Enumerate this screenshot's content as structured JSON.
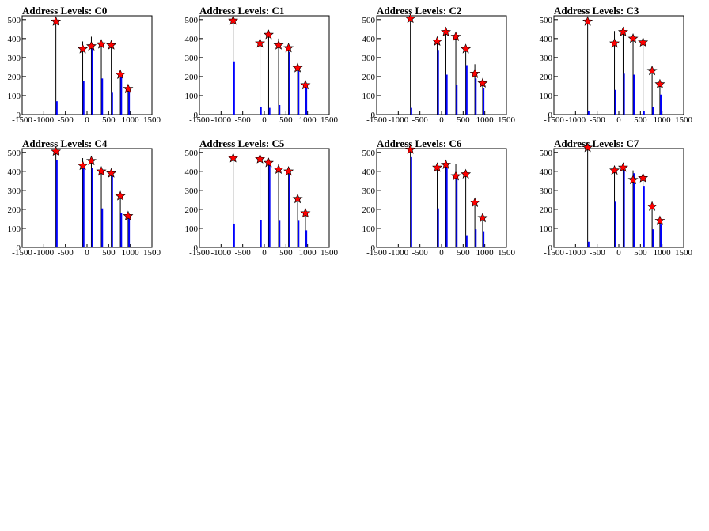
{
  "chart_data": [
    {
      "type": "bar",
      "title": "Address Levels: C0",
      "xlim": [
        -1500,
        1500
      ],
      "ylim": [
        0,
        520
      ],
      "xticks": [
        -1500,
        -1000,
        -500,
        0,
        500,
        1000,
        1500
      ],
      "yticks": [
        0,
        100,
        200,
        300,
        400,
        500
      ],
      "series": [
        {
          "color": "#000000",
          "x": [
            -720,
            -100,
            100,
            330,
            560,
            770,
            950
          ],
          "values": [
            490,
            385,
            410,
            375,
            370,
            215,
            140
          ]
        },
        {
          "color": "#0000ff",
          "x": [
            -720,
            -100,
            100,
            330,
            560,
            770,
            950
          ],
          "values": [
            70,
            175,
            350,
            190,
            115,
            200,
            120
          ]
        }
      ],
      "peaks": {
        "color": "#ff0000",
        "x": [
          -720,
          -100,
          100,
          330,
          560,
          770,
          950
        ],
        "values": [
          490,
          345,
          360,
          370,
          365,
          210,
          135
        ]
      }
    },
    {
      "type": "bar",
      "title": "Address Levels: C1",
      "xlim": [
        -1500,
        1500
      ],
      "ylim": [
        0,
        520
      ],
      "xticks": [
        -1500,
        -1000,
        -500,
        0,
        500,
        1000,
        1500
      ],
      "yticks": [
        0,
        100,
        200,
        300,
        400,
        500
      ],
      "series": [
        {
          "color": "#000000",
          "x": [
            -720,
            -100,
            100,
            330,
            560,
            770,
            950
          ],
          "values": [
            500,
            430,
            425,
            400,
            365,
            255,
            165
          ]
        },
        {
          "color": "#0000ff",
          "x": [
            -720,
            -100,
            100,
            330,
            560,
            770,
            950
          ],
          "values": [
            280,
            40,
            35,
            50,
            330,
            230,
            140
          ]
        }
      ],
      "peaks": {
        "color": "#ff0000",
        "x": [
          -720,
          -100,
          100,
          330,
          560,
          770,
          950
        ],
        "values": [
          495,
          375,
          420,
          365,
          350,
          245,
          155
        ]
      }
    },
    {
      "type": "bar",
      "title": "Address Levels: C2",
      "xlim": [
        -1500,
        1500
      ],
      "ylim": [
        0,
        520
      ],
      "xticks": [
        -1500,
        -1000,
        -500,
        0,
        500,
        1000,
        1500
      ],
      "yticks": [
        0,
        100,
        200,
        300,
        400,
        500
      ],
      "series": [
        {
          "color": "#000000",
          "x": [
            -720,
            -100,
            100,
            330,
            560,
            770,
            950
          ],
          "values": [
            505,
            400,
            445,
            420,
            365,
            265,
            175
          ]
        },
        {
          "color": "#0000ff",
          "x": [
            -720,
            -100,
            100,
            330,
            560,
            770,
            950
          ],
          "values": [
            35,
            340,
            210,
            155,
            260,
            190,
            140
          ]
        }
      ],
      "peaks": {
        "color": "#ff0000",
        "x": [
          -720,
          -100,
          100,
          330,
          560,
          770,
          950
        ],
        "values": [
          505,
          385,
          435,
          410,
          345,
          215,
          165
        ]
      }
    },
    {
      "type": "bar",
      "title": "Address Levels: C3",
      "xlim": [
        -1500,
        1500
      ],
      "ylim": [
        0,
        520
      ],
      "xticks": [
        -1500,
        -1000,
        -500,
        0,
        500,
        1000,
        1500
      ],
      "yticks": [
        0,
        100,
        200,
        300,
        400,
        500
      ],
      "series": [
        {
          "color": "#000000",
          "x": [
            -720,
            -100,
            100,
            330,
            560,
            770,
            950
          ],
          "values": [
            490,
            440,
            445,
            420,
            375,
            250,
            175
          ]
        },
        {
          "color": "#0000ff",
          "x": [
            -720,
            -100,
            100,
            330,
            560,
            770,
            950
          ],
          "values": [
            20,
            130,
            215,
            210,
            20,
            40,
            105
          ]
        }
      ],
      "peaks": {
        "color": "#ff0000",
        "x": [
          -720,
          -100,
          100,
          330,
          560,
          770,
          950
        ],
        "values": [
          490,
          375,
          435,
          400,
          380,
          230,
          160
        ]
      }
    },
    {
      "type": "bar",
      "title": "Address Levels: C4",
      "xlim": [
        -1500,
        1500
      ],
      "ylim": [
        0,
        520
      ],
      "xticks": [
        -1500,
        -1000,
        -500,
        0,
        500,
        1000,
        1500
      ],
      "yticks": [
        0,
        100,
        200,
        300,
        400,
        500
      ],
      "series": [
        {
          "color": "#000000",
          "x": [
            -720,
            -100,
            100,
            330,
            560,
            770,
            950
          ],
          "values": [
            505,
            470,
            470,
            415,
            395,
            280,
            170
          ]
        },
        {
          "color": "#0000ff",
          "x": [
            -720,
            -100,
            100,
            330,
            560,
            770,
            950
          ],
          "values": [
            460,
            430,
            420,
            205,
            390,
            180,
            155
          ]
        }
      ],
      "peaks": {
        "color": "#ff0000",
        "x": [
          -720,
          -100,
          100,
          330,
          560,
          770,
          950
        ],
        "values": [
          505,
          430,
          455,
          400,
          390,
          270,
          165
        ]
      }
    },
    {
      "type": "bar",
      "title": "Address Levels: C5",
      "xlim": [
        -1500,
        1500
      ],
      "ylim": [
        0,
        520
      ],
      "xticks": [
        -1500,
        -1000,
        -500,
        0,
        500,
        1000,
        1500
      ],
      "yticks": [
        0,
        100,
        200,
        300,
        400,
        500
      ],
      "series": [
        {
          "color": "#000000",
          "x": [
            -720,
            -100,
            100,
            330,
            560,
            770,
            950
          ],
          "values": [
            480,
            465,
            450,
            440,
            400,
            260,
            190
          ]
        },
        {
          "color": "#0000ff",
          "x": [
            -720,
            -100,
            100,
            330,
            560,
            770,
            950
          ],
          "values": [
            125,
            145,
            445,
            140,
            385,
            140,
            90
          ]
        }
      ],
      "peaks": {
        "color": "#ff0000",
        "x": [
          -720,
          -100,
          100,
          330,
          560,
          770,
          950
        ],
        "values": [
          470,
          465,
          445,
          410,
          400,
          255,
          180
        ]
      }
    },
    {
      "type": "bar",
      "title": "Address Levels: C6",
      "xlim": [
        -1500,
        1500
      ],
      "ylim": [
        0,
        520
      ],
      "xticks": [
        -1500,
        -1000,
        -500,
        0,
        500,
        1000,
        1500
      ],
      "yticks": [
        0,
        100,
        200,
        300,
        400,
        500
      ],
      "series": [
        {
          "color": "#000000",
          "x": [
            -720,
            -100,
            100,
            330,
            560,
            770,
            950
          ],
          "values": [
            515,
            425,
            445,
            440,
            390,
            245,
            165
          ]
        },
        {
          "color": "#0000ff",
          "x": [
            -720,
            -100,
            100,
            330,
            560,
            770,
            950
          ],
          "values": [
            475,
            205,
            430,
            375,
            60,
            95,
            85
          ]
        }
      ],
      "peaks": {
        "color": "#ff0000",
        "x": [
          -720,
          -100,
          100,
          330,
          560,
          770,
          950
        ],
        "values": [
          515,
          420,
          435,
          375,
          385,
          235,
          155
        ]
      }
    },
    {
      "type": "bar",
      "title": "Address Levels: C7",
      "xlim": [
        -1500,
        1500
      ],
      "ylim": [
        0,
        520
      ],
      "xticks": [
        -1500,
        -1000,
        -500,
        0,
        500,
        1000,
        1500
      ],
      "yticks": [
        0,
        100,
        200,
        300,
        400,
        500
      ],
      "series": [
        {
          "color": "#000000",
          "x": [
            -720,
            -100,
            100,
            330,
            560,
            770,
            950
          ],
          "values": [
            525,
            410,
            430,
            405,
            375,
            230,
            150
          ]
        },
        {
          "color": "#0000ff",
          "x": [
            -720,
            -100,
            100,
            330,
            560,
            770,
            950
          ],
          "values": [
            30,
            240,
            420,
            390,
            320,
            95,
            120
          ]
        }
      ],
      "peaks": {
        "color": "#ff0000",
        "x": [
          -720,
          -100,
          100,
          330,
          560,
          770,
          950
        ],
        "values": [
          525,
          405,
          420,
          355,
          365,
          215,
          140
        ]
      }
    }
  ]
}
